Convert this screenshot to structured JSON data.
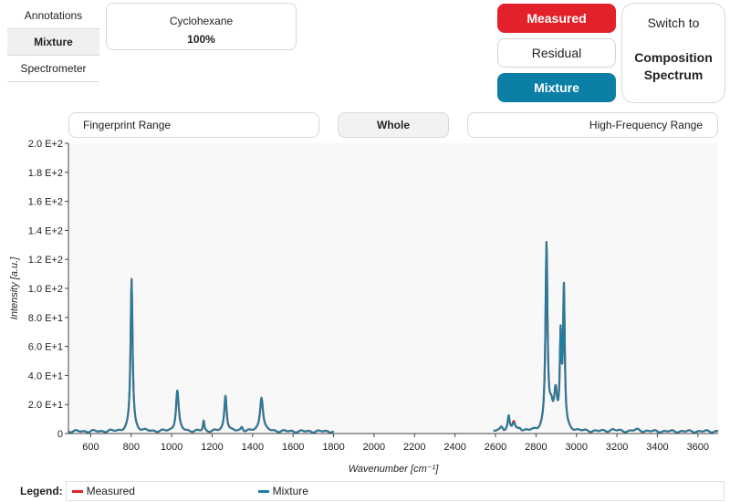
{
  "tabs": [
    {
      "label": "Annotations",
      "active": false
    },
    {
      "label": "Mixture",
      "active": true
    },
    {
      "label": "Spectrometer",
      "active": false
    }
  ],
  "component": {
    "name": "Cyclohexane",
    "percentage": "100%"
  },
  "toggles": {
    "measured": "Measured",
    "residual": "Residual",
    "mixture": "Mixture"
  },
  "switch_button": {
    "line1": "Switch to",
    "line2": "Composition",
    "line3": "Spectrum"
  },
  "range_buttons": {
    "fingerprint": "Fingerprint Range",
    "whole": "Whole",
    "high_frequency": "High-Frequency Range"
  },
  "legend": {
    "title": "Legend:",
    "entries": [
      "Measured",
      "Mixture"
    ]
  },
  "colors": {
    "measured": "#e3212b",
    "mixture": "#1f7f9e",
    "plot_bg": "#f8f8f8"
  },
  "chart_data": {
    "type": "line",
    "xlabel": "Wavenumber [cm⁻¹]",
    "ylabel": "Intensity [a.u.]",
    "xlim": [
      490,
      3700
    ],
    "ylim": [
      0,
      200
    ],
    "xticks": [
      600,
      800,
      1000,
      1200,
      1400,
      1600,
      1800,
      2000,
      2200,
      2400,
      2600,
      2800,
      3000,
      3200,
      3400,
      3600
    ],
    "yticks": [
      {
        "value": 0,
        "label": "0"
      },
      {
        "value": 20,
        "label": "2.0 E+1"
      },
      {
        "value": 40,
        "label": "4.0 E+1"
      },
      {
        "value": 60,
        "label": "6.0 E+1"
      },
      {
        "value": 80,
        "label": "8.0 E+1"
      },
      {
        "value": 100,
        "label": "1.0 E+2"
      },
      {
        "value": 120,
        "label": "1.2 E+2"
      },
      {
        "value": 140,
        "label": "1.4 E+2"
      },
      {
        "value": 160,
        "label": "1.6 E+2"
      },
      {
        "value": 180,
        "label": "1.8 E+2"
      },
      {
        "value": 200,
        "label": "2.0 E+2"
      }
    ],
    "grid": false,
    "legend": "bottom",
    "series": [
      {
        "name": "Measured",
        "segments": [
          {
            "baseline": 1.5,
            "range": [
              490,
              1800
            ],
            "peaks": [
              [
                802,
                105,
                6
              ],
              [
                1028,
                28,
                8
              ],
              [
                1158,
                7,
                4
              ],
              [
                1266,
                25,
                7
              ],
              [
                1347,
                3,
                6
              ],
              [
                1444,
                24,
                9
              ]
            ]
          },
          {
            "baseline": 1.5,
            "range": [
              2590,
              3700
            ],
            "peaks": [
              [
                2630,
                3,
                8
              ],
              [
                2665,
                9,
                6
              ],
              [
                2690,
                6,
                8
              ],
              [
                2720,
                2,
                8
              ],
              [
                2852,
                127,
                6
              ],
              [
                2875,
                12,
                10
              ],
              [
                2897,
                25,
                9
              ],
              [
                2922,
                60,
                5
              ],
              [
                2938,
                95,
                5
              ],
              [
                3180,
                1,
                20
              ],
              [
                3300,
                1,
                20
              ]
            ]
          }
        ]
      },
      {
        "name": "Mixture",
        "segments": [
          {
            "baseline": 1.5,
            "range": [
              490,
              1800
            ],
            "peaks": [
              [
                802,
                105,
                6
              ],
              [
                1028,
                28,
                8
              ],
              [
                1158,
                7,
                4
              ],
              [
                1266,
                25,
                7
              ],
              [
                1347,
                3,
                6
              ],
              [
                1444,
                24,
                9
              ]
            ]
          },
          {
            "baseline": 1.5,
            "range": [
              2590,
              3700
            ],
            "peaks": [
              [
                2630,
                3,
                8
              ],
              [
                2665,
                10,
                6
              ],
              [
                2690,
                5,
                8
              ],
              [
                2720,
                2,
                8
              ],
              [
                2852,
                127,
                6
              ],
              [
                2875,
                12,
                10
              ],
              [
                2897,
                25,
                9
              ],
              [
                2922,
                60,
                5
              ],
              [
                2938,
                95,
                5
              ],
              [
                3180,
                1,
                20
              ],
              [
                3300,
                1,
                20
              ]
            ]
          }
        ]
      }
    ]
  }
}
